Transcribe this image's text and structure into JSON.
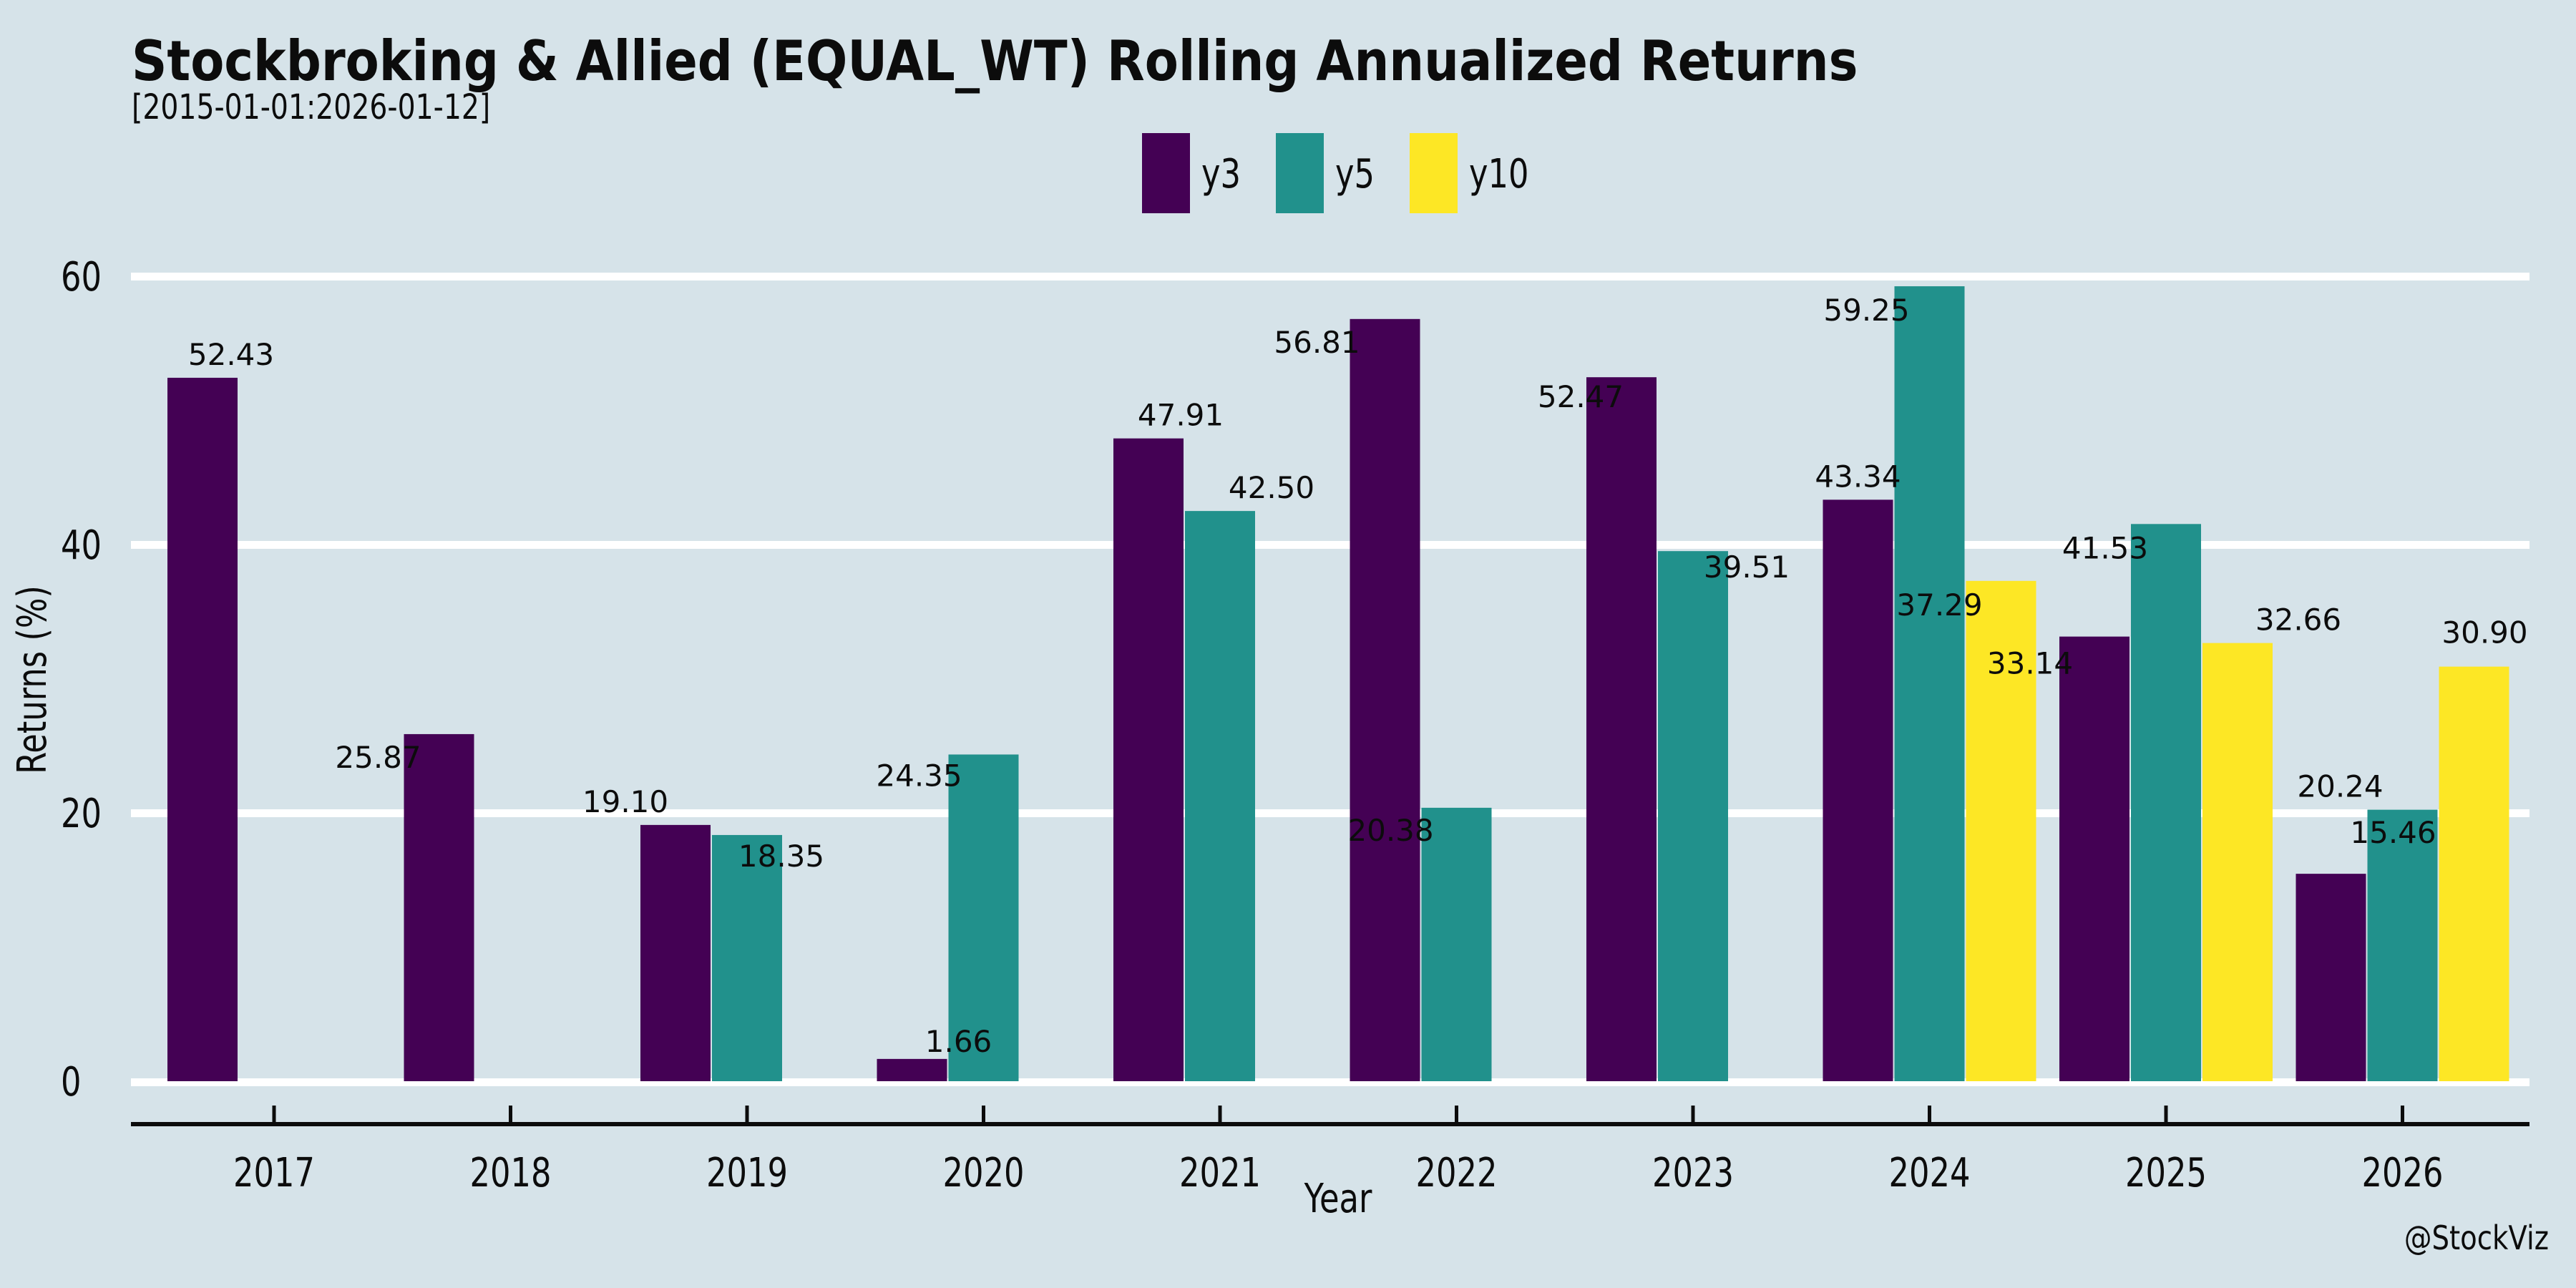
{
  "chart_data": {
    "type": "bar",
    "title": "Stockbroking & Allied (EQUAL_WT) Rolling Annualized Returns",
    "subtitle": "[2015-01-01:2026-01-12]",
    "xlabel": "Year",
    "ylabel": "Returns (%)",
    "watermark": "@StockViz",
    "background_color": "#d6e3e9",
    "grid": {
      "show": true,
      "color": "#ffffff",
      "yticks": [
        0,
        20,
        40,
        60
      ]
    },
    "ylim": [
      0,
      62
    ],
    "legend_position": "top-center",
    "axis_color": "#0c0c0c",
    "categories": [
      "2017",
      "2018",
      "2019",
      "2020",
      "2021",
      "2022",
      "2023",
      "2024",
      "2025",
      "2026"
    ],
    "series": [
      {
        "name": "y3",
        "color": "#440154",
        "values": [
          52.43,
          25.87,
          19.1,
          1.66,
          47.91,
          56.81,
          52.47,
          43.34,
          33.14,
          15.46
        ]
      },
      {
        "name": "y5",
        "color": "#21918c",
        "values": [
          null,
          null,
          18.35,
          24.35,
          42.5,
          20.38,
          39.51,
          59.25,
          41.53,
          20.24
        ]
      },
      {
        "name": "y10",
        "color": "#fde725",
        "values": [
          null,
          null,
          null,
          null,
          null,
          null,
          null,
          37.29,
          32.66,
          30.9
        ]
      }
    ],
    "label_offsets": [
      [
        [
          40,
          0
        ],
        [
          -85,
          65
        ],
        [
          -70,
          0
        ],
        [
          65,
          8
        ],
        [
          45,
          0
        ],
        [
          -95,
          65
        ],
        [
          -57,
          60
        ],
        [
          0,
          0
        ],
        [
          -90,
          70
        ],
        [
          87,
          -25
        ]
      ],
      [
        null,
        null,
        [
          48,
          62
        ],
        [
          -90,
          62
        ],
        [
          72,
          0
        ],
        [
          -92,
          64
        ],
        [
          75,
          55
        ],
        [
          -88,
          66
        ],
        [
          -85,
          66
        ],
        [
          -87,
          0
        ]
      ],
      [
        null,
        null,
        null,
        null,
        null,
        null,
        null,
        [
          -86,
          66
        ],
        [
          85,
          0
        ],
        [
          15,
          -15
        ]
      ]
    ]
  }
}
